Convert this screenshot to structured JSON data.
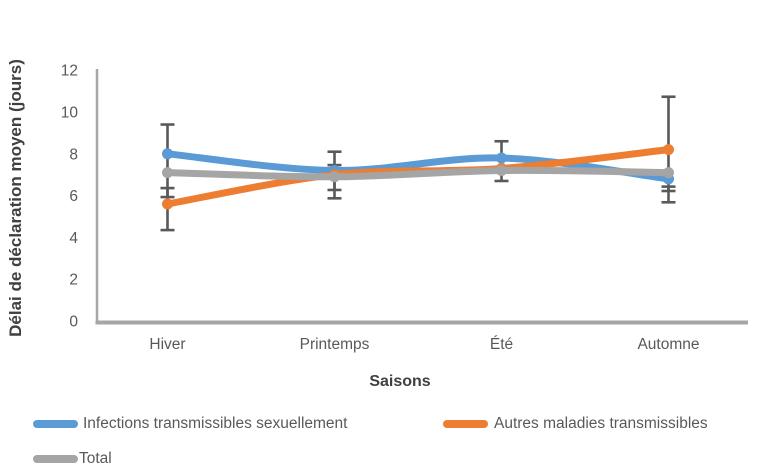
{
  "chart_data": {
    "type": "line",
    "categories": [
      "Hiver",
      "Printemps",
      "Été",
      "Automne"
    ],
    "series": [
      {
        "name": "Infections transmissibles sexuellement",
        "color": "#5B9BD5",
        "values": [
          8.0,
          7.2,
          7.8,
          6.8
        ]
      },
      {
        "name": "Autres maladies transmissibles",
        "color": "#ED7D31",
        "values": [
          5.6,
          7.0,
          7.3,
          8.2
        ]
      },
      {
        "name": "Total",
        "color": "#A5A5A5",
        "values": [
          7.1,
          6.9,
          7.2,
          7.1
        ]
      }
    ],
    "error_bars": [
      {
        "category": "Hiver",
        "ranges": [
          [
            4.35,
            9.4
          ],
          [
            5.93,
            6.36
          ]
        ]
      },
      {
        "category": "Printemps",
        "ranges": [
          [
            5.87,
            8.1
          ],
          [
            6.27,
            7.46
          ]
        ]
      },
      {
        "category": "Été",
        "ranges": [
          [
            6.7,
            8.6
          ]
        ]
      },
      {
        "category": "Automne",
        "ranges": [
          [
            5.68,
            10.73
          ],
          [
            6.22,
            6.43
          ]
        ]
      }
    ],
    "xlabel": "Saisons",
    "ylabel": "Délai de déclaration moyen (jours)",
    "ylim": [
      0,
      12
    ],
    "yticks": [
      0,
      2,
      4,
      6,
      8,
      10,
      12
    ],
    "grid": false,
    "legend_position": "bottom",
    "smooth_lines": true,
    "colors": {
      "error_bar": "#595959",
      "axis_line": "#A6A6A6",
      "tick_label": "#595959",
      "axis_title": "#404040"
    }
  }
}
